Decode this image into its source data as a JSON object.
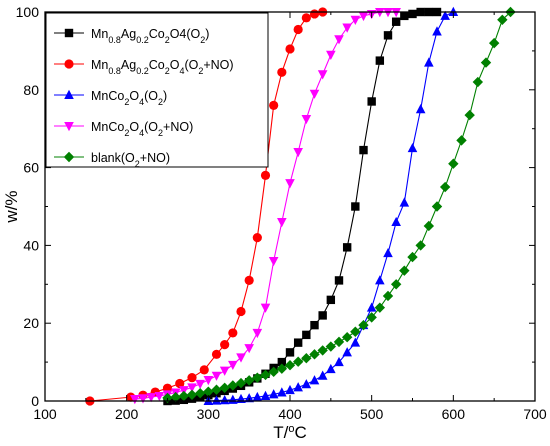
{
  "chart_data": {
    "type": "line",
    "xlabel": "T/°C",
    "ylabel": "w/%",
    "xlim": [
      100,
      700
    ],
    "ylim": [
      0,
      100
    ],
    "xticks": [
      100,
      200,
      300,
      400,
      500,
      600,
      700
    ],
    "yticks": [
      0,
      20,
      40,
      60,
      80,
      100
    ],
    "grid": false,
    "legend_position": "top-left",
    "series": [
      {
        "name": "Mn0.8Ag0.2Co2O4(O2)",
        "color": "#000000",
        "marker": "square",
        "x": [
          250,
          260,
          270,
          280,
          290,
          300,
          310,
          320,
          330,
          340,
          350,
          360,
          370,
          380,
          390,
          400,
          410,
          420,
          430,
          440,
          450,
          460,
          470,
          480,
          490,
          500,
          510,
          520,
          530,
          540,
          550,
          560,
          570,
          580
        ],
        "y": [
          0,
          0.1,
          0.3,
          0.6,
          1,
          1.5,
          2,
          2.6,
          3.2,
          3.9,
          4.8,
          5.8,
          7,
          8.5,
          10,
          12.5,
          15,
          17,
          19.5,
          22,
          26,
          31,
          39.5,
          50,
          64.5,
          77,
          87.5,
          94,
          97.5,
          99,
          99.5,
          100,
          100,
          100
        ]
      },
      {
        "name": "Mn0.8Ag0.2Co2O4(O2+NO)",
        "color": "#ff0000",
        "marker": "circle",
        "x": [
          155,
          205,
          220,
          235,
          250,
          265,
          280,
          295,
          310,
          320,
          330,
          340,
          350,
          360,
          370,
          380,
          390,
          400,
          410,
          420,
          430,
          440
        ],
        "y": [
          0,
          1,
          1.5,
          2.3,
          3.3,
          4.5,
          6,
          8,
          12,
          14.5,
          17.5,
          23,
          31,
          42,
          58,
          76,
          84.5,
          90.5,
          95.5,
          98.5,
          99.5,
          100
        ]
      },
      {
        "name": "MnCo2O4(O2)",
        "color": "#0000ff",
        "marker": "triangle-up",
        "x": [
          300,
          310,
          320,
          330,
          340,
          350,
          360,
          370,
          380,
          390,
          400,
          410,
          420,
          430,
          440,
          450,
          460,
          470,
          480,
          490,
          500,
          510,
          520,
          530,
          540,
          550,
          560,
          570,
          580,
          590,
          600
        ],
        "y": [
          0,
          0.1,
          0.2,
          0.3,
          0.5,
          0.7,
          1,
          1.3,
          1.7,
          2.2,
          2.8,
          3.5,
          4.3,
          5.3,
          6.5,
          8.2,
          10,
          12.5,
          15,
          19.5,
          24,
          31,
          38,
          46,
          51,
          65,
          75,
          87,
          95,
          99,
          100
        ]
      },
      {
        "name": "MnCo2O4(O2+NO)",
        "color": "#ff00ff",
        "marker": "triangle-down",
        "x": [
          210,
          220,
          230,
          240,
          250,
          260,
          270,
          280,
          290,
          300,
          310,
          320,
          330,
          340,
          350,
          360,
          370,
          380,
          390,
          400,
          410,
          420,
          430,
          440,
          450,
          460,
          470,
          480,
          490,
          500,
          510,
          520,
          530
        ],
        "y": [
          0.5,
          0.7,
          1,
          1.3,
          1.7,
          2.2,
          2.8,
          3.5,
          4.4,
          5.4,
          6.5,
          7.8,
          9.3,
          11.2,
          13.6,
          17.5,
          24,
          36,
          46,
          56,
          64,
          72.5,
          79,
          84,
          89,
          93,
          96,
          98,
          99,
          99.5,
          100,
          100,
          100
        ]
      },
      {
        "name": "blank(O2+NO)",
        "color": "#008000",
        "marker": "diamond",
        "x": [
          250,
          260,
          270,
          280,
          290,
          300,
          310,
          320,
          330,
          340,
          350,
          360,
          370,
          380,
          390,
          400,
          410,
          420,
          430,
          440,
          450,
          460,
          470,
          480,
          490,
          500,
          510,
          520,
          530,
          540,
          550,
          560,
          570,
          580,
          590,
          600,
          610,
          620,
          630,
          640,
          650,
          660,
          670
        ],
        "y": [
          0.8,
          1,
          1.3,
          1.6,
          2,
          2.4,
          2.9,
          3.4,
          4,
          4.6,
          5.3,
          6,
          6.7,
          7.5,
          8.3,
          9.2,
          10.1,
          11,
          12,
          13,
          14,
          15.2,
          16.4,
          17.8,
          19.5,
          21.5,
          24,
          27,
          30,
          33.5,
          37,
          40,
          45,
          50,
          55,
          61,
          67,
          73.5,
          82,
          87,
          92,
          98,
          100
        ]
      }
    ],
    "legend_labels": [
      {
        "main": "Mn",
        "s1": "0.8",
        "m2": "Ag",
        "s2": "0.2",
        "m3": "Co",
        "s3": "2",
        "m4": "O4(O",
        "s4": "2",
        "m5": ")"
      },
      {
        "main": "Mn",
        "s1": "0.8",
        "m2": "Ag",
        "s2": "0.2",
        "m3": "Co",
        "s3": "2",
        "m4": "O",
        "s4": "4",
        "m5": "(O",
        "s5": "2",
        "m6": "+NO)"
      },
      {
        "main": "MnCo",
        "s1": "2",
        "m2": "O",
        "s2": "4",
        "m3": "(O",
        "s3": "2",
        "m4": ")"
      },
      {
        "main": "MnCo",
        "s1": "2",
        "m2": "O",
        "s2": "4",
        "m3": "(O",
        "s3": "2",
        "m4": "+NO)"
      },
      {
        "main": "blank(O",
        "s1": "2",
        "m2": "+NO)"
      }
    ],
    "ylabel_text": "w/%",
    "xlabel_parts": {
      "a": "T/",
      "sup": "o",
      "b": "C"
    }
  }
}
